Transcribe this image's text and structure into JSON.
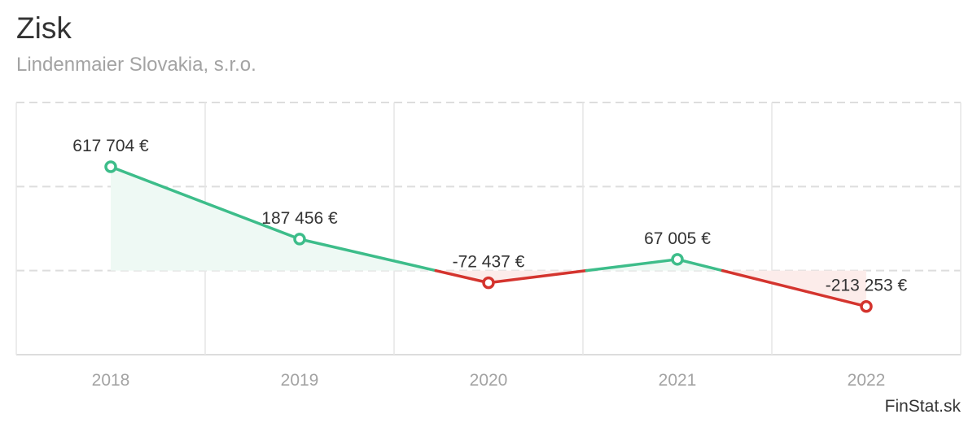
{
  "chart_data": {
    "type": "line",
    "title": "Zisk",
    "subtitle": "Lindenmaier Slovakia, s.r.o.",
    "categories": [
      "2018",
      "2019",
      "2020",
      "2021",
      "2022"
    ],
    "values": [
      617704,
      187456,
      -72437,
      67005,
      -213253
    ],
    "data_labels": [
      "617 704 €",
      "187 456 €",
      "-72 437 €",
      "67 005 €",
      "-213 253 €"
    ],
    "ylim": [
      -500000,
      1000000
    ],
    "grid": true,
    "positive_color": "#3dbd8a",
    "negative_color": "#d4342e",
    "positive_fill": "#eef9f4",
    "negative_fill": "#fcecea"
  },
  "credit": "FinStat.sk"
}
